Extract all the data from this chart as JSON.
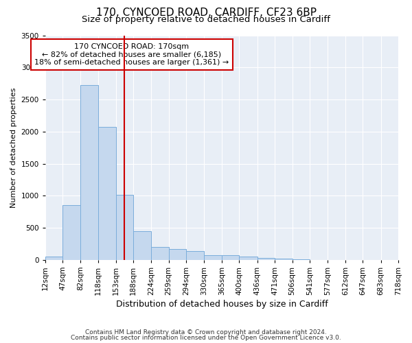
{
  "title1": "170, CYNCOED ROAD, CARDIFF, CF23 6BP",
  "title2": "Size of property relative to detached houses in Cardiff",
  "xlabel": "Distribution of detached houses by size in Cardiff",
  "ylabel": "Number of detached properties",
  "footnote1": "Contains HM Land Registry data © Crown copyright and database right 2024.",
  "footnote2": "Contains public sector information licensed under the Open Government Licence v3.0.",
  "annotation_line1": "170 CYNCOED ROAD: 170sqm",
  "annotation_line2": "← 82% of detached houses are smaller (6,185)",
  "annotation_line3": "18% of semi-detached houses are larger (1,361) →",
  "bar_edges": [
    12,
    47,
    82,
    118,
    153,
    188,
    224,
    259,
    294,
    330,
    365,
    400,
    436,
    471,
    506,
    541,
    577,
    612,
    647,
    683,
    718
  ],
  "bar_heights": [
    55,
    850,
    2725,
    2075,
    1010,
    450,
    205,
    175,
    135,
    75,
    70,
    50,
    30,
    20,
    5,
    3,
    2,
    1,
    1,
    1
  ],
  "tick_labels": [
    "12sqm",
    "47sqm",
    "82sqm",
    "118sqm",
    "153sqm",
    "188sqm",
    "224sqm",
    "259sqm",
    "294sqm",
    "330sqm",
    "365sqm",
    "400sqm",
    "436sqm",
    "471sqm",
    "506sqm",
    "541sqm",
    "577sqm",
    "612sqm",
    "647sqm",
    "683sqm",
    "718sqm"
  ],
  "bar_color": "#c5d8ee",
  "bar_edge_color": "#7aaddb",
  "vline_x": 170,
  "vline_color": "#cc0000",
  "box_color": "#cc0000",
  "ylim": [
    0,
    3500
  ],
  "yticks": [
    0,
    500,
    1000,
    1500,
    2000,
    2500,
    3000,
    3500
  ],
  "background_color": "#e8eef6",
  "grid_color": "#ffffff",
  "title1_fontsize": 11,
  "title2_fontsize": 9.5,
  "xlabel_fontsize": 9,
  "ylabel_fontsize": 8,
  "annotation_fontsize": 8,
  "tick_fontsize": 7.5,
  "footnote_fontsize": 6.5
}
